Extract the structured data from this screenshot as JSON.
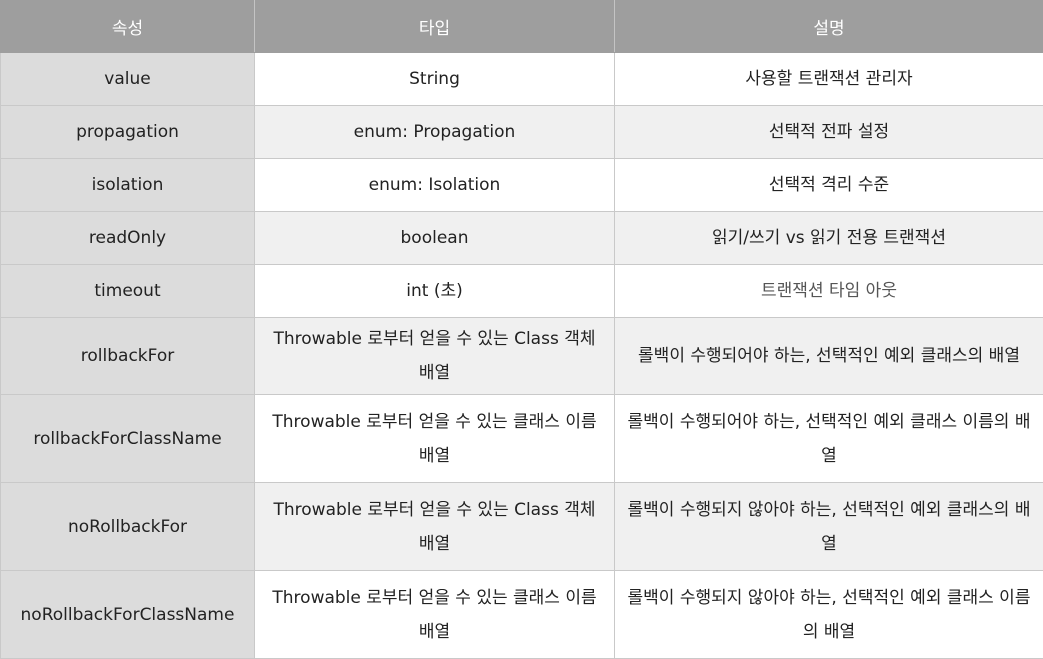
{
  "table": {
    "headers": [
      "속성",
      "타입",
      "설명"
    ],
    "rows": [
      {
        "attribute": "value",
        "type": "String",
        "description": "사용할 트랜잭션 관리자"
      },
      {
        "attribute": "propagation",
        "type": "enum: Propagation",
        "description": "선택적 전파 설정"
      },
      {
        "attribute": "isolation",
        "type": "enum: Isolation",
        "description": "선택적 격리 수준"
      },
      {
        "attribute": "readOnly",
        "type": "boolean",
        "description": "읽기/쓰기 vs 읽기 전용 트랜잭션"
      },
      {
        "attribute": "timeout",
        "type": "int (초)",
        "description": "트랜잭션 타임 아웃"
      },
      {
        "attribute": "rollbackFor",
        "type": "Throwable 로부터 얻을 수 있는 Class 객체 배열",
        "description": "롤백이 수행되어야 하는, 선택적인 예외 클래스의 배열"
      },
      {
        "attribute": "rollbackForClassName",
        "type": "Throwable 로부터 얻을 수 있는 클래스 이름 배열",
        "description": "롤백이 수행되어야 하는, 선택적인 예외 클래스 이름의 배열"
      },
      {
        "attribute": "noRollbackFor",
        "type": "Throwable 로부터 얻을 수 있는 Class 객체 배열",
        "description": "롤백이 수행되지 않아야 하는, 선택적인 예외 클래스의 배열"
      },
      {
        "attribute": "noRollbackForClassName",
        "type": "Throwable 로부터 얻을 수 있는 클래스 이름 배열",
        "description": "롤백이 수행되지 않아야 하는, 선택적인 예외 클래스 이름의 배열"
      }
    ]
  }
}
